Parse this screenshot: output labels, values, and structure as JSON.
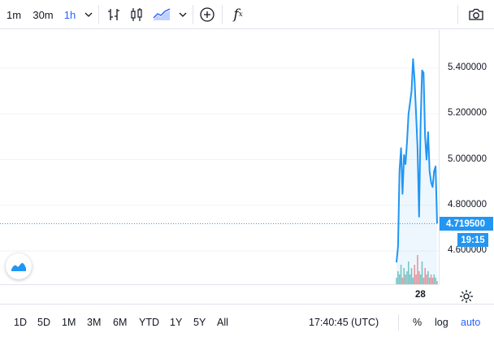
{
  "toolbar": {
    "intervals": [
      {
        "label": "1m",
        "active": false
      },
      {
        "label": "30m",
        "active": false
      },
      {
        "label": "1h",
        "active": true
      }
    ],
    "icons": [
      "chevron-down-icon",
      "bars-icon",
      "candles-icon",
      "area-chart-icon",
      "chevron-down-icon",
      "add-indicator-icon",
      "function-icon",
      "camera-icon"
    ],
    "fx_label": "f",
    "fx_sub": "x"
  },
  "price_axis": {
    "ticks": [
      "5.400000",
      "5.200000",
      "5.000000",
      "4.800000",
      "4.600000"
    ],
    "current_price": "4.719500",
    "countdown": "19:15"
  },
  "time_axis": {
    "label": "28"
  },
  "bottombar": {
    "ranges": [
      "1D",
      "5D",
      "1M",
      "3M",
      "6M",
      "YTD",
      "1Y",
      "5Y",
      "All"
    ],
    "clock": "17:40:45 (UTC)",
    "percent_label": "%",
    "log_label": "log",
    "auto_label": "auto"
  },
  "colors": {
    "line": "#2196f3",
    "accent": "#2962ff",
    "volume_up": "#26a69a",
    "volume_down": "#ef5350"
  },
  "chart_data": {
    "type": "area",
    "ylim": [
      4.5,
      5.5
    ],
    "yticks": [
      5.4,
      5.2,
      5.0,
      4.8,
      4.6
    ],
    "current_value": 4.7195,
    "series": [
      {
        "values": [
          4.55,
          4.62,
          4.95,
          5.05,
          4.85,
          5.02,
          4.98,
          5.08,
          5.2,
          5.25,
          5.3,
          5.44,
          5.35,
          5.2,
          5.05,
          4.75,
          5.15,
          5.39,
          5.38,
          5.1,
          5.0,
          5.12,
          4.95,
          4.9,
          4.88,
          4.95,
          4.97,
          4.72
        ]
      }
    ],
    "volumes": [
      0.2,
      0.4,
      0.3,
      0.6,
      0.2,
      0.5,
      0.3,
      0.4,
      0.7,
      0.3,
      0.5,
      0.2,
      0.6,
      0.3,
      0.9,
      0.4,
      0.3,
      0.7,
      0.2,
      0.5,
      0.3,
      0.4,
      0.2,
      0.3,
      0.2,
      0.3,
      0.2,
      0.1
    ]
  }
}
